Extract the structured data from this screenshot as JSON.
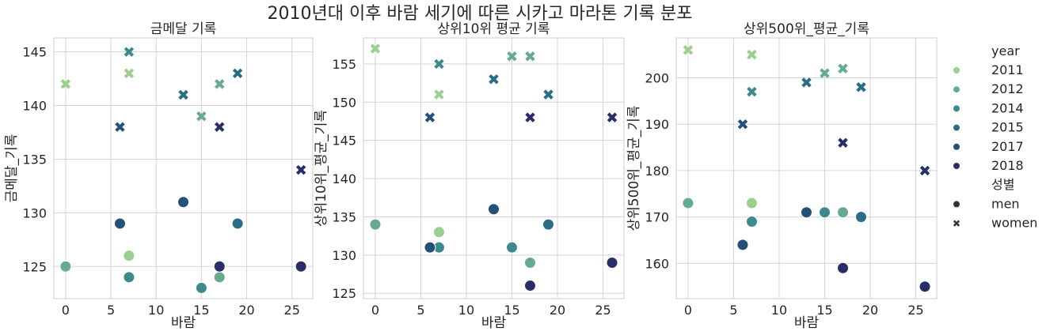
{
  "title": "2010년대 이후 바람 세기에 따른 시카고 마라톤 기록 분포",
  "legend": {
    "hue_title": "year",
    "style_title": "성별",
    "years": [
      "2011",
      "2012",
      "2014",
      "2015",
      "2017",
      "2018"
    ],
    "genders": [
      "men",
      "women"
    ],
    "colors": {
      "2011": "#9ccf8f",
      "2012": "#67ab8f",
      "2014": "#3d8a8c",
      "2015": "#2b6d86",
      "2017": "#24507a",
      "2018": "#2a2e68"
    },
    "markers": {
      "men": "circle",
      "women": "x"
    }
  },
  "chart_data": [
    {
      "type": "scatter",
      "title": "금메달 기록",
      "xlabel": "바람",
      "ylabel": "금메달_기록",
      "xlim": [
        -1.3,
        27.3
      ],
      "ylim": [
        122,
        146.3
      ],
      "xticks": [
        0,
        5,
        10,
        15,
        20,
        25
      ],
      "yticks": [
        125,
        130,
        135,
        140,
        145
      ],
      "grid": true,
      "points": [
        {
          "year": "2011",
          "gender": "men",
          "x": 7,
          "y": 126
        },
        {
          "year": "2012",
          "gender": "men",
          "x": 0,
          "y": 125
        },
        {
          "year": "2012",
          "gender": "men",
          "x": 17,
          "y": 124
        },
        {
          "year": "2014",
          "gender": "men",
          "x": 7,
          "y": 124
        },
        {
          "year": "2014",
          "gender": "men",
          "x": 15,
          "y": 123
        },
        {
          "year": "2015",
          "gender": "men",
          "x": 19,
          "y": 129
        },
        {
          "year": "2017",
          "gender": "men",
          "x": 13,
          "y": 131
        },
        {
          "year": "2017",
          "gender": "men",
          "x": 6,
          "y": 129
        },
        {
          "year": "2018",
          "gender": "men",
          "x": 17,
          "y": 125
        },
        {
          "year": "2018",
          "gender": "men",
          "x": 26,
          "y": 125
        },
        {
          "year": "2011",
          "gender": "women",
          "x": 0,
          "y": 142
        },
        {
          "year": "2011",
          "gender": "women",
          "x": 7,
          "y": 143
        },
        {
          "year": "2012",
          "gender": "women",
          "x": 17,
          "y": 142
        },
        {
          "year": "2012",
          "gender": "women",
          "x": 15,
          "y": 139
        },
        {
          "year": "2014",
          "gender": "women",
          "x": 7,
          "y": 145
        },
        {
          "year": "2015",
          "gender": "women",
          "x": 19,
          "y": 143
        },
        {
          "year": "2015",
          "gender": "women",
          "x": 13,
          "y": 141
        },
        {
          "year": "2017",
          "gender": "women",
          "x": 6,
          "y": 138
        },
        {
          "year": "2018",
          "gender": "women",
          "x": 17,
          "y": 138
        },
        {
          "year": "2018",
          "gender": "women",
          "x": 26,
          "y": 134
        }
      ]
    },
    {
      "type": "scatter",
      "title": "상위10위 평균 기록",
      "xlabel": "바람",
      "ylabel": "상위10위_평균_기록",
      "xlim": [
        -1.3,
        27.3
      ],
      "ylim": [
        124.3,
        158.4
      ],
      "xticks": [
        0,
        5,
        10,
        15,
        20,
        25
      ],
      "yticks": [
        125,
        130,
        135,
        140,
        145,
        150,
        155
      ],
      "grid": true,
      "points": [
        {
          "year": "2011",
          "gender": "men",
          "x": 7,
          "y": 133
        },
        {
          "year": "2012",
          "gender": "men",
          "x": 0,
          "y": 134
        },
        {
          "year": "2012",
          "gender": "men",
          "x": 17,
          "y": 129
        },
        {
          "year": "2014",
          "gender": "men",
          "x": 7,
          "y": 131
        },
        {
          "year": "2014",
          "gender": "men",
          "x": 15,
          "y": 131
        },
        {
          "year": "2015",
          "gender": "men",
          "x": 19,
          "y": 134
        },
        {
          "year": "2017",
          "gender": "men",
          "x": 13,
          "y": 136
        },
        {
          "year": "2017",
          "gender": "men",
          "x": 6,
          "y": 131
        },
        {
          "year": "2018",
          "gender": "men",
          "x": 17,
          "y": 126
        },
        {
          "year": "2018",
          "gender": "men",
          "x": 26,
          "y": 129
        },
        {
          "year": "2011",
          "gender": "women",
          "x": 0,
          "y": 157
        },
        {
          "year": "2011",
          "gender": "women",
          "x": 7,
          "y": 151
        },
        {
          "year": "2012",
          "gender": "women",
          "x": 17,
          "y": 156
        },
        {
          "year": "2012",
          "gender": "women",
          "x": 15,
          "y": 156
        },
        {
          "year": "2014",
          "gender": "women",
          "x": 7,
          "y": 155
        },
        {
          "year": "2015",
          "gender": "women",
          "x": 19,
          "y": 151
        },
        {
          "year": "2015",
          "gender": "women",
          "x": 13,
          "y": 153
        },
        {
          "year": "2017",
          "gender": "women",
          "x": 6,
          "y": 148
        },
        {
          "year": "2018",
          "gender": "women",
          "x": 17,
          "y": 148
        },
        {
          "year": "2018",
          "gender": "women",
          "x": 26,
          "y": 148
        }
      ]
    },
    {
      "type": "scatter",
      "title": "상위500위_평균_기록",
      "xlabel": "바람",
      "ylabel": "상위500위_평균_기록",
      "xlim": [
        -1.3,
        27.3
      ],
      "ylim": [
        152.4,
        208.6
      ],
      "xticks": [
        0,
        5,
        10,
        15,
        20,
        25
      ],
      "yticks": [
        160,
        170,
        180,
        190,
        200
      ],
      "grid": true,
      "points": [
        {
          "year": "2011",
          "gender": "men",
          "x": 7,
          "y": 173
        },
        {
          "year": "2012",
          "gender": "men",
          "x": 0,
          "y": 173
        },
        {
          "year": "2012",
          "gender": "men",
          "x": 17,
          "y": 171
        },
        {
          "year": "2014",
          "gender": "men",
          "x": 7,
          "y": 169
        },
        {
          "year": "2014",
          "gender": "men",
          "x": 15,
          "y": 171
        },
        {
          "year": "2015",
          "gender": "men",
          "x": 19,
          "y": 170
        },
        {
          "year": "2017",
          "gender": "men",
          "x": 13,
          "y": 171
        },
        {
          "year": "2017",
          "gender": "men",
          "x": 6,
          "y": 164
        },
        {
          "year": "2018",
          "gender": "men",
          "x": 17,
          "y": 159
        },
        {
          "year": "2018",
          "gender": "men",
          "x": 26,
          "y": 155
        },
        {
          "year": "2011",
          "gender": "women",
          "x": 0,
          "y": 206
        },
        {
          "year": "2011",
          "gender": "women",
          "x": 7,
          "y": 205
        },
        {
          "year": "2012",
          "gender": "women",
          "x": 17,
          "y": 202
        },
        {
          "year": "2012",
          "gender": "women",
          "x": 15,
          "y": 201
        },
        {
          "year": "2014",
          "gender": "women",
          "x": 7,
          "y": 197
        },
        {
          "year": "2015",
          "gender": "women",
          "x": 19,
          "y": 198
        },
        {
          "year": "2015",
          "gender": "women",
          "x": 13,
          "y": 199
        },
        {
          "year": "2017",
          "gender": "women",
          "x": 6,
          "y": 190
        },
        {
          "year": "2018",
          "gender": "women",
          "x": 17,
          "y": 186
        },
        {
          "year": "2018",
          "gender": "women",
          "x": 26,
          "y": 180
        }
      ]
    }
  ]
}
